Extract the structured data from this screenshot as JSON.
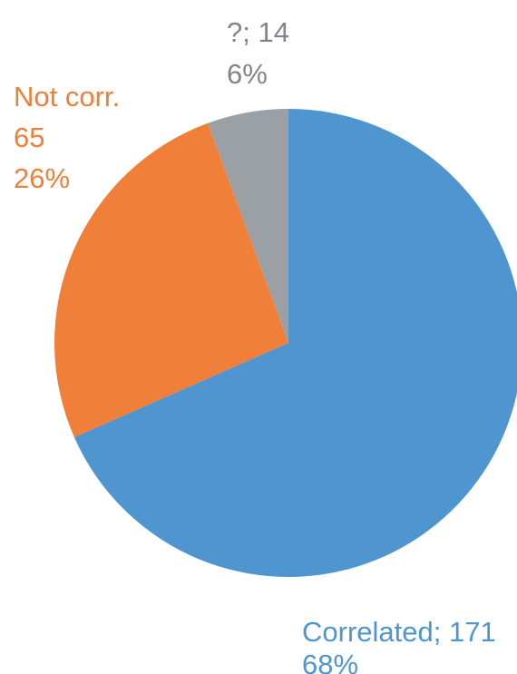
{
  "chart_data": {
    "type": "pie",
    "start_angle_deg": 0,
    "direction": "clockwise",
    "slices": [
      {
        "name": "Correlated",
        "value": 171,
        "percent": "68%",
        "label_line1": "Correlated; 171",
        "label_line2": "68%",
        "color": "#4f95d0"
      },
      {
        "name": "Not corr.",
        "value": 65,
        "percent": "26%",
        "label_line1": "Not corr.",
        "label_line2": "65",
        "label_line3": "26%",
        "color": "#f07f3a"
      },
      {
        "name": "?",
        "value": 14,
        "percent": "6%",
        "label_line1": "?; 14",
        "label_line2": "6%",
        "color": "#9ba0a5"
      }
    ],
    "label_colors": {
      "Correlated": "#4f95d0",
      "Not corr.": "#f07f3a",
      "?": "#80858a"
    }
  }
}
